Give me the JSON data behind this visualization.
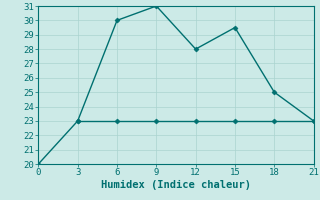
{
  "line1_x": [
    0,
    3,
    6,
    9,
    12,
    15,
    18,
    21
  ],
  "line1_y": [
    20,
    23,
    30,
    31,
    28,
    29.5,
    25,
    23
  ],
  "line2_x": [
    3,
    6,
    9,
    12,
    15,
    18,
    21
  ],
  "line2_y": [
    23,
    23,
    23,
    23,
    23,
    23,
    23
  ],
  "color": "#007070",
  "bg_color": "#cceae7",
  "grid_color": "#aad4d0",
  "xlabel": "Humidex (Indice chaleur)",
  "xlim": [
    0,
    21
  ],
  "ylim": [
    20,
    31
  ],
  "xticks": [
    0,
    3,
    6,
    9,
    12,
    15,
    18,
    21
  ],
  "yticks": [
    20,
    21,
    22,
    23,
    24,
    25,
    26,
    27,
    28,
    29,
    30,
    31
  ],
  "marker": "D",
  "markersize": 2.5,
  "linewidth": 1.0,
  "tick_fontsize": 6.5,
  "xlabel_fontsize": 7.5
}
